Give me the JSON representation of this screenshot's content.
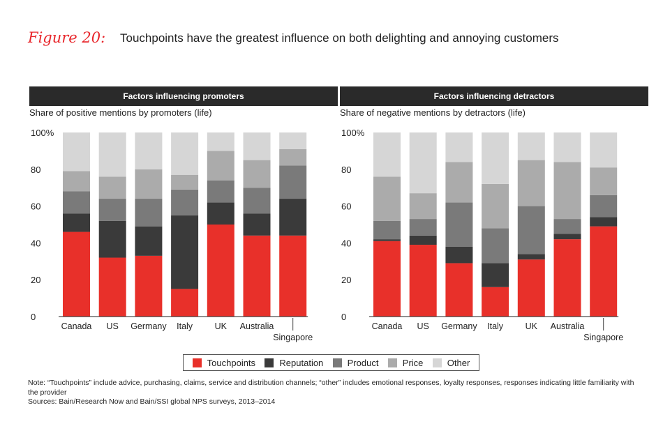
{
  "figure": {
    "label": "Figure 20:",
    "title": "Touchpoints have the greatest influence on both delighting and annoying customers"
  },
  "colors": {
    "touchpoints": "#e8302a",
    "reputation": "#3a3a3a",
    "product": "#7a7a7a",
    "price": "#ababab",
    "other": "#d6d6d6"
  },
  "legend": {
    "items": [
      {
        "label": "Touchpoints",
        "color": "#e8302a"
      },
      {
        "label": "Reputation",
        "color": "#3a3a3a"
      },
      {
        "label": "Product",
        "color": "#7a7a7a"
      },
      {
        "label": "Price",
        "color": "#ababab"
      },
      {
        "label": "Other",
        "color": "#d6d6d6"
      }
    ]
  },
  "chart_data": [
    {
      "type": "bar",
      "stacked": true,
      "title": "Factors influencing promoters",
      "ylabel": "Share of positive mentions by promoters (life)",
      "ylim": [
        0,
        100
      ],
      "yticks": [
        "0",
        "20",
        "40",
        "60",
        "80",
        "100%"
      ],
      "categories": [
        "Canada",
        "US",
        "Germany",
        "Italy",
        "UK",
        "Australia",
        "Singapore"
      ],
      "series": [
        {
          "name": "Touchpoints",
          "values": [
            46,
            32,
            33,
            15,
            50,
            44,
            44
          ]
        },
        {
          "name": "Reputation",
          "values": [
            10,
            20,
            16,
            40,
            12,
            12,
            20
          ]
        },
        {
          "name": "Product",
          "values": [
            12,
            12,
            15,
            14,
            12,
            14,
            18
          ]
        },
        {
          "name": "Price",
          "values": [
            11,
            12,
            16,
            8,
            16,
            15,
            9
          ]
        },
        {
          "name": "Other",
          "values": [
            21,
            24,
            20,
            23,
            10,
            15,
            9
          ]
        }
      ]
    },
    {
      "type": "bar",
      "stacked": true,
      "title": "Factors influencing detractors",
      "ylabel": "Share of negative mentions by detractors (life)",
      "ylim": [
        0,
        100
      ],
      "yticks": [
        "0",
        "20",
        "40",
        "60",
        "80",
        "100%"
      ],
      "categories": [
        "Canada",
        "US",
        "Germany",
        "Italy",
        "UK",
        "Australia",
        "Singapore"
      ],
      "series": [
        {
          "name": "Touchpoints",
          "values": [
            41,
            39,
            29,
            16,
            31,
            42,
            49
          ]
        },
        {
          "name": "Reputation",
          "values": [
            1,
            5,
            9,
            13,
            3,
            3,
            5
          ]
        },
        {
          "name": "Product",
          "values": [
            10,
            9,
            24,
            19,
            26,
            8,
            12
          ]
        },
        {
          "name": "Price",
          "values": [
            24,
            14,
            22,
            24,
            25,
            31,
            15
          ]
        },
        {
          "name": "Other",
          "values": [
            24,
            33,
            16,
            28,
            15,
            16,
            19
          ]
        }
      ]
    }
  ],
  "notes": {
    "note": "Note: “Touchpoints” include advice, purchasing, claims, service and distribution channels; “other” includes emotional responses, loyalty responses, responses indicating little familiarity with the provider",
    "sources": "Sources: Bain/Research Now and Bain/SSI global NPS surveys, 2013–2014"
  }
}
